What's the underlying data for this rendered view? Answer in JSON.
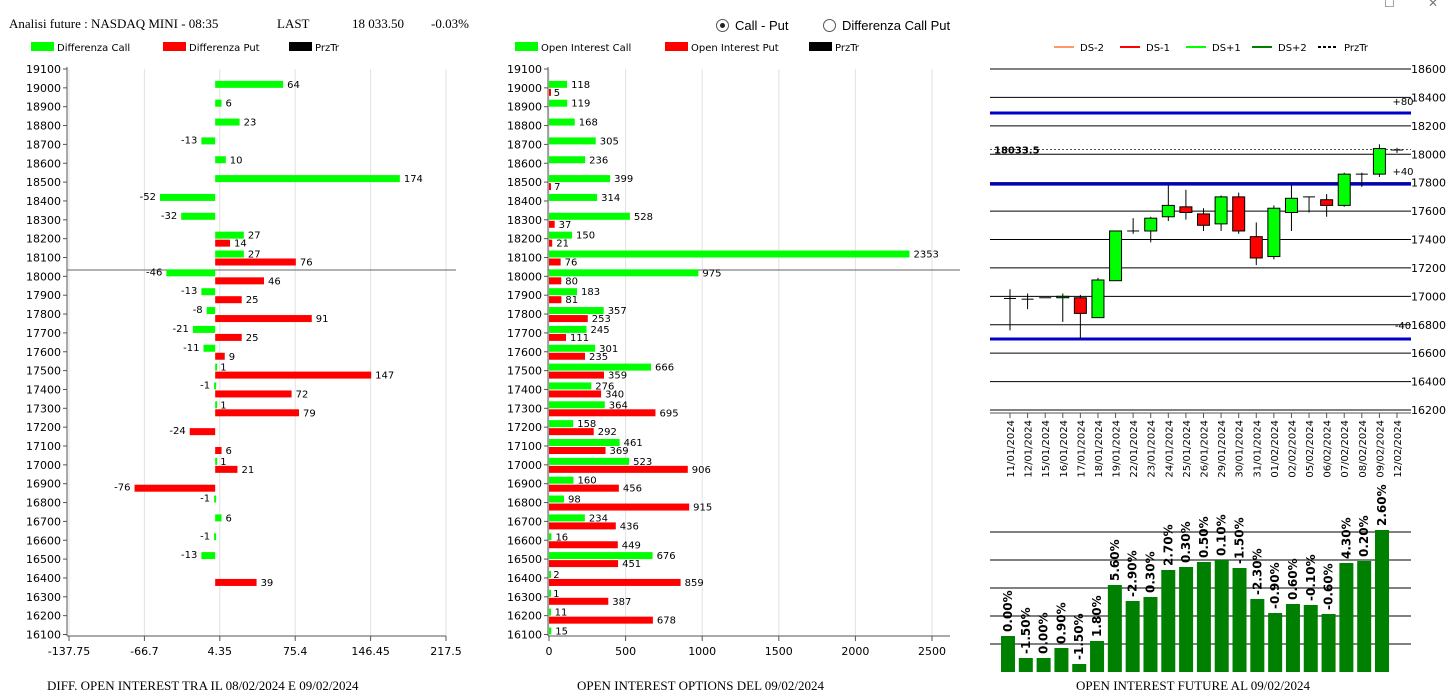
{
  "header": {
    "title": "Analisi future : NASDAQ MINI - 08:35",
    "last_label": "LAST",
    "last_value": "18 033.50",
    "change": "-0.03%"
  },
  "radio": {
    "option1": "Call - Put",
    "option2": "Differenza Call Put",
    "selected": "option1"
  },
  "footers": {
    "left": "DIFF. OPEN INTEREST TRA IL 08/02/2024 E 09/02/2024",
    "middle": "OPEN INTEREST OPTIONS DEL 09/02/2024",
    "right": "OPEN INTEREST FUTURE AL 09/02/2024"
  },
  "colors": {
    "green": "#00ff00",
    "red": "#ff0000",
    "dark_green": "#008000",
    "blue": "#0000cc",
    "orange": "#ff9966"
  },
  "chart_data": [
    {
      "id": "diff",
      "type": "bar",
      "legend": [
        "Differenza Call",
        "Differenza Put",
        "PrzTr"
      ],
      "strikes": [
        19100,
        19000,
        18900,
        18800,
        18700,
        18600,
        18500,
        18400,
        18300,
        18200,
        18100,
        18000,
        17900,
        17800,
        17700,
        17600,
        17500,
        17400,
        17300,
        17200,
        17100,
        17000,
        16900,
        16800,
        16700,
        16600,
        16500,
        16400,
        16300,
        16200,
        16100
      ],
      "series": [
        {
          "name": "Differenza Call",
          "values": [
            null,
            64,
            6,
            23,
            -13,
            10,
            174,
            -52,
            -32,
            27,
            27,
            -46,
            -13,
            -8,
            -21,
            -11,
            1,
            -1,
            1,
            null,
            null,
            1,
            null,
            -1,
            6,
            -1,
            -13,
            null,
            null,
            null,
            null
          ]
        },
        {
          "name": "Differenza Put",
          "values": [
            null,
            null,
            null,
            null,
            null,
            null,
            null,
            null,
            null,
            14,
            76,
            46,
            25,
            91,
            25,
            9,
            147,
            72,
            79,
            -24,
            6,
            21,
            -76,
            null,
            null,
            null,
            null,
            39,
            null,
            null,
            null
          ]
        }
      ],
      "xticks": [
        "-137.75",
        "-66.7",
        "4.35",
        "75.4",
        "146.45",
        "217.5"
      ],
      "xlim": [
        -137.75,
        217.5
      ],
      "prztr": 18033.5
    },
    {
      "id": "oi",
      "type": "bar",
      "legend": [
        "Open Interest Call",
        "Open Interest Put",
        "PrzTr"
      ],
      "strikes": [
        19100,
        19000,
        18900,
        18800,
        18700,
        18600,
        18500,
        18400,
        18300,
        18200,
        18100,
        18000,
        17900,
        17800,
        17700,
        17600,
        17500,
        17400,
        17300,
        17200,
        17100,
        17000,
        16900,
        16800,
        16700,
        16600,
        16500,
        16400,
        16300,
        16200,
        16100
      ],
      "series": [
        {
          "name": "Open Interest Call",
          "values": [
            null,
            118,
            119,
            168,
            305,
            236,
            399,
            314,
            528,
            150,
            2353,
            975,
            183,
            357,
            245,
            301,
            666,
            276,
            364,
            158,
            461,
            523,
            160,
            98,
            234,
            16,
            676,
            2,
            1,
            11,
            15
          ]
        },
        {
          "name": "Open Interest Put",
          "values": [
            null,
            5,
            null,
            null,
            null,
            null,
            7,
            null,
            37,
            21,
            76,
            80,
            81,
            253,
            111,
            235,
            359,
            340,
            695,
            292,
            369,
            906,
            456,
            915,
            436,
            449,
            451,
            859,
            387,
            678,
            null
          ]
        }
      ],
      "xticks": [
        "0",
        "500",
        "1000",
        "1500",
        "2000",
        "2500"
      ],
      "xlim": [
        0,
        2600
      ],
      "prztr": 18033.5
    },
    {
      "id": "candles",
      "type": "candlestick",
      "legend": [
        "DS-2",
        "DS-1",
        "DS+1",
        "DS+2",
        "PrzTr"
      ],
      "ylim": [
        16200,
        18600
      ],
      "yticks": [
        "18600",
        "18400",
        "18200",
        "18000",
        "17800",
        "17600",
        "17400",
        "17200",
        "17000",
        "16800",
        "16600",
        "16400",
        "16200"
      ],
      "dates": [
        "11/01/2024",
        "12/01/2024",
        "15/01/2024",
        "16/01/2024",
        "17/01/2024",
        "18/01/2024",
        "19/01/2024",
        "22/01/2024",
        "23/01/2024",
        "24/01/2024",
        "25/01/2024",
        "26/01/2024",
        "29/01/2024",
        "30/01/2024",
        "31/01/2024",
        "01/02/2024",
        "02/02/2024",
        "05/02/2024",
        "06/02/2024",
        "07/02/2024",
        "08/02/2024",
        "09/02/2024",
        "12/02/2024"
      ],
      "candles": [
        {
          "o": 16985,
          "c": 16985,
          "h": 17050,
          "l": 16760
        },
        {
          "o": 16980,
          "c": 16980,
          "h": 17020,
          "l": 16910
        },
        {
          "o": 16990,
          "c": 16990,
          "h": 16990,
          "l": 16990
        },
        {
          "o": 16990,
          "c": 17000,
          "h": 17020,
          "l": 16820
        },
        {
          "o": 16990,
          "c": 16880,
          "h": 17010,
          "l": 16700
        },
        {
          "o": 16850,
          "c": 17115,
          "h": 17130,
          "l": 16850
        },
        {
          "o": 17110,
          "c": 17460,
          "h": 17460,
          "l": 17110
        },
        {
          "o": 17460,
          "c": 17460,
          "h": 17550,
          "l": 17440
        },
        {
          "o": 17460,
          "c": 17550,
          "h": 17560,
          "l": 17380
        },
        {
          "o": 17560,
          "c": 17640,
          "h": 17780,
          "l": 17530
        },
        {
          "o": 17630,
          "c": 17590,
          "h": 17750,
          "l": 17540
        },
        {
          "o": 17580,
          "c": 17500,
          "h": 17620,
          "l": 17460
        },
        {
          "o": 17510,
          "c": 17700,
          "h": 17710,
          "l": 17460
        },
        {
          "o": 17700,
          "c": 17460,
          "h": 17730,
          "l": 17440
        },
        {
          "o": 17420,
          "c": 17270,
          "h": 17520,
          "l": 17220
        },
        {
          "o": 17280,
          "c": 17620,
          "h": 17640,
          "l": 17260
        },
        {
          "o": 17590,
          "c": 17690,
          "h": 17780,
          "l": 17460
        },
        {
          "o": 17700,
          "c": 17700,
          "h": 17700,
          "l": 17590
        },
        {
          "o": 17680,
          "c": 17640,
          "h": 17720,
          "l": 17560
        },
        {
          "o": 17640,
          "c": 17860,
          "h": 17870,
          "l": 17630
        },
        {
          "o": 17860,
          "c": 17860,
          "h": 17870,
          "l": 17770
        },
        {
          "o": 17860,
          "c": 18040,
          "h": 18070,
          "l": 17840
        },
        {
          "o": 18030,
          "c": 18030,
          "h": 18045,
          "l": 18010
        }
      ],
      "levels": [
        {
          "name": "+80",
          "value": 18290
        },
        {
          "name": "+40",
          "value": 17790
        },
        {
          "name": "-40",
          "value": 16700
        }
      ],
      "level_labels": [
        "+80",
        "+40",
        "-40"
      ],
      "prztr": 18033.5,
      "prztr_label": "18033.5"
    },
    {
      "id": "futoi",
      "type": "bar",
      "dates": [
        "11/01/2024",
        "12/01/2024",
        "15/01/2024",
        "16/01/2024",
        "17/01/2024",
        "18/01/2024",
        "19/01/2024",
        "22/01/2024",
        "23/01/2024",
        "24/01/2024",
        "25/01/2024",
        "26/01/2024",
        "29/01/2024",
        "30/01/2024",
        "31/01/2024",
        "01/02/2024",
        "02/02/2024",
        "05/02/2024",
        "06/02/2024",
        "07/02/2024",
        "08/02/2024",
        "09/02/2024",
        "12/02/2024"
      ],
      "labels": [
        "0.00%",
        "-1.50%",
        "0.00%",
        "0.90%",
        "-1.50%",
        "1.80%",
        "5.60%",
        "-2.90%",
        "0.30%",
        "2.70%",
        "0.30%",
        "0.50%",
        "0.10%",
        "-1.50%",
        "-2.30%",
        "-0.90%",
        "0.60%",
        "-0.10%",
        "-0.60%",
        "4.30%",
        "0.20%",
        "2.60%"
      ],
      "heights": [
        36,
        14,
        14,
        24,
        8,
        31,
        87,
        71,
        75,
        102,
        105,
        110,
        112,
        104,
        73,
        59,
        68,
        67,
        58,
        109,
        111,
        142
      ]
    }
  ]
}
